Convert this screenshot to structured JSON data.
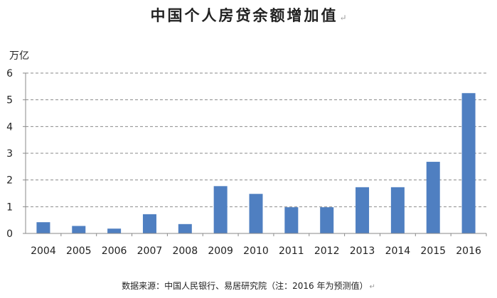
{
  "chart_data": {
    "type": "bar",
    "title": "中国个人房贷余额增加值",
    "ylabel": "万亿",
    "xlabel": "",
    "categories": [
      "2004",
      "2005",
      "2006",
      "2007",
      "2008",
      "2009",
      "2010",
      "2011",
      "2012",
      "2013",
      "2014",
      "2015",
      "2016"
    ],
    "values": [
      0.42,
      0.28,
      0.18,
      0.72,
      0.35,
      1.77,
      1.48,
      0.98,
      0.98,
      1.73,
      1.73,
      2.68,
      5.25
    ],
    "ylim": [
      0,
      6
    ],
    "yticks": [
      "0",
      "1",
      "2",
      "3",
      "4",
      "5",
      "6"
    ],
    "grid": true,
    "bar_color": "#4f7fc1",
    "source": "数据来源：中国人民银行、易居研究院（注：2016 年为预测值）"
  }
}
